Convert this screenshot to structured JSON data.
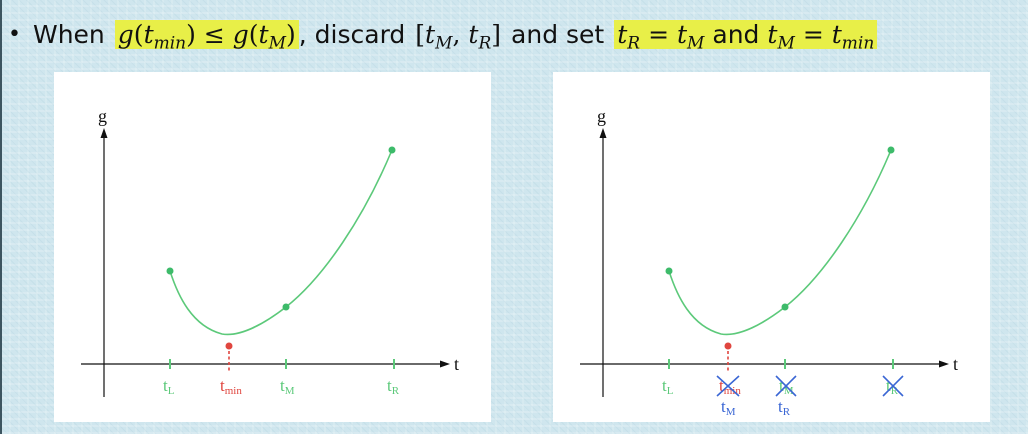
{
  "heading": {
    "bullet": "•",
    "text_when": "When",
    "text_discard": ", discard",
    "text_and_set": "and set",
    "text_and": "and",
    "g": "g",
    "leq": "≤",
    "eq": "=",
    "t": "t",
    "sub_min": "min",
    "sub_M": "M",
    "sub_R": "R",
    "lparen": "(",
    "rparen": ")",
    "lbracket": "[",
    "rbracket": "]",
    "comma": ","
  },
  "colors": {
    "curve": "#5cc97a",
    "point": "#3dbb6a",
    "tmin": "#e0463f",
    "relabel": "#3a66d4",
    "cross": "#3a66d4",
    "highlight": "#e8ef48"
  },
  "axes": {
    "y_label": "g",
    "x_label": "t"
  },
  "ticks": [
    {
      "id": "L",
      "base": "t",
      "sub": "L"
    },
    {
      "id": "min",
      "base": "t",
      "sub": "min"
    },
    {
      "id": "M",
      "base": "t",
      "sub": "M"
    },
    {
      "id": "R",
      "base": "t",
      "sub": "R"
    }
  ],
  "right_panel_relabels": [
    {
      "under": "min",
      "base": "t",
      "sub": "M"
    },
    {
      "under": "M",
      "base": "t",
      "sub": "R"
    }
  ],
  "crossed_out_ticks": [
    "min",
    "M",
    "R"
  ]
}
